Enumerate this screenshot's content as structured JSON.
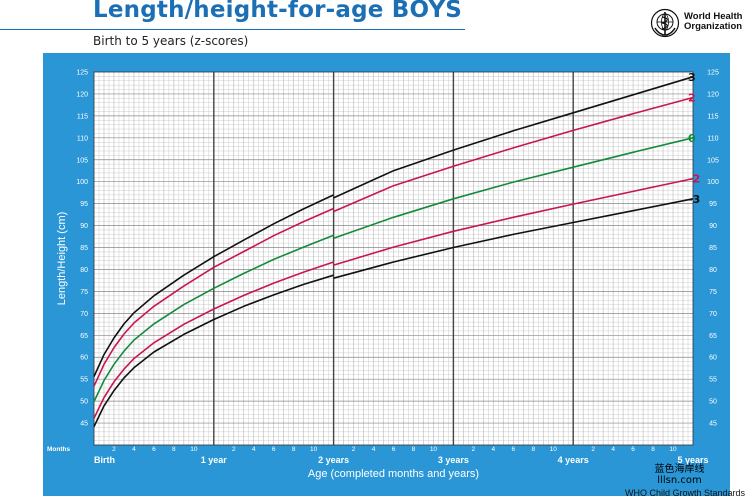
{
  "header": {
    "title": "Length/height-for-age BOYS",
    "subtitle": "Birth to 5 years (z-scores)",
    "org_line1": "World Health",
    "org_line2": "Organization",
    "logo_icon": "who-emblem-icon"
  },
  "colors": {
    "title_blue": "#1b6fb4",
    "panel_blue": "#2a96d6",
    "grid_minor": "#b9b9b9",
    "grid_major": "#444444",
    "sd3": "#111111",
    "sd2": "#c8174f",
    "median": "#158a3c"
  },
  "watermark": {
    "line1": "蓝色海岸线",
    "line2": "lllsn.com"
  },
  "footer": "WHO Child Growth Standards",
  "chart_data": {
    "type": "line",
    "title": "Length/height-for-age BOYS",
    "subtitle": "Birth to 5 years (z-scores)",
    "xlabel": "Age (completed months and years)",
    "ylabel": "Length/Height (cm)",
    "xlim": [
      0,
      60
    ],
    "ylim": [
      40,
      125
    ],
    "y_ticks": [
      45,
      50,
      55,
      60,
      65,
      70,
      75,
      80,
      85,
      90,
      95,
      100,
      105,
      110,
      115,
      120,
      125
    ],
    "month_row_label": "Months",
    "month_ticks": [
      2,
      4,
      6,
      8,
      10,
      2,
      4,
      6,
      8,
      10,
      2,
      4,
      6,
      8,
      10,
      2,
      4,
      6,
      8,
      10,
      2,
      4,
      6,
      8,
      10
    ],
    "year_labels": [
      "Birth",
      "1 year",
      "2 years",
      "3 years",
      "4 years",
      "5 years"
    ],
    "grid": true,
    "curve_break_at_month": 24,
    "x": [
      0,
      1,
      2,
      3,
      4,
      6,
      9,
      12,
      15,
      18,
      21,
      24,
      30,
      36,
      42,
      48,
      54,
      60
    ],
    "series": [
      {
        "name": "3",
        "color": "#111111",
        "values": [
          55.6,
          60.6,
          64.4,
          67.6,
          70.1,
          74.0,
          78.7,
          82.9,
          86.7,
          90.4,
          93.8,
          97.0,
          102.5,
          107.2,
          111.6,
          115.7,
          119.8,
          123.9
        ],
        "values_after_break": {
          "x": 24,
          "y": 96.3
        }
      },
      {
        "name": "2",
        "color": "#c8174f",
        "values": [
          53.4,
          58.4,
          62.2,
          65.3,
          67.8,
          71.6,
          76.2,
          80.5,
          84.1,
          87.7,
          90.9,
          93.9,
          99.1,
          103.5,
          107.7,
          111.7,
          115.5,
          119.2
        ],
        "values_after_break": {
          "x": 24,
          "y": 93.2
        }
      },
      {
        "name": "0",
        "color": "#158a3c",
        "values": [
          49.9,
          54.7,
          58.4,
          61.4,
          63.9,
          67.6,
          72.0,
          75.7,
          79.1,
          82.3,
          85.1,
          87.8,
          91.9,
          96.1,
          99.9,
          103.3,
          106.7,
          110.0
        ],
        "values_after_break": {
          "x": 24,
          "y": 87.1
        }
      },
      {
        "name": "-2",
        "color": "#c8174f",
        "values": [
          46.1,
          50.8,
          54.4,
          57.3,
          59.7,
          63.3,
          67.5,
          71.0,
          74.1,
          76.9,
          79.4,
          81.7,
          85.1,
          88.7,
          91.9,
          94.9,
          97.8,
          100.7
        ],
        "values_after_break": {
          "x": 24,
          "y": 81.0
        }
      },
      {
        "name": "-3",
        "color": "#111111",
        "values": [
          44.2,
          48.9,
          52.4,
          55.3,
          57.6,
          61.2,
          65.2,
          68.6,
          71.6,
          74.2,
          76.6,
          78.7,
          81.7,
          85.0,
          88.0,
          90.7,
          93.4,
          96.1
        ],
        "values_after_break": {
          "x": 24,
          "y": 78.0
        }
      }
    ]
  }
}
